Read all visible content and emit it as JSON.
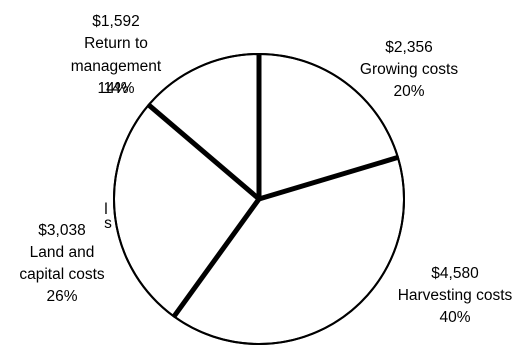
{
  "chart_data": {
    "type": "pie",
    "slices": [
      {
        "label": "Growing costs",
        "value": 2356,
        "value_text": "$2,356",
        "percent_text": "20%"
      },
      {
        "label": "Harvesting costs",
        "value": 4580,
        "value_text": "$4,580",
        "percent_text": "40%"
      },
      {
        "label": "Land and capital costs",
        "value": 3038,
        "value_text": "$3,038",
        "percent_text": "26%"
      },
      {
        "label": "Return to management",
        "value": 1592,
        "value_text": "$1,592",
        "percent_text": "14%"
      }
    ],
    "label_lines": {
      "growing": [
        "$2,356",
        "Growing costs",
        "20%"
      ],
      "harvesting": [
        "$4,580",
        "Harvesting costs",
        "40%"
      ],
      "land": [
        "$3,038",
        "Land and",
        "capital costs",
        "26%"
      ],
      "return": [
        "$1,592",
        "Return to",
        "management",
        "14%"
      ]
    },
    "artifact_text": [
      "l",
      "s"
    ],
    "fill_color": "#ffffff",
    "stroke_color": "#000000"
  }
}
